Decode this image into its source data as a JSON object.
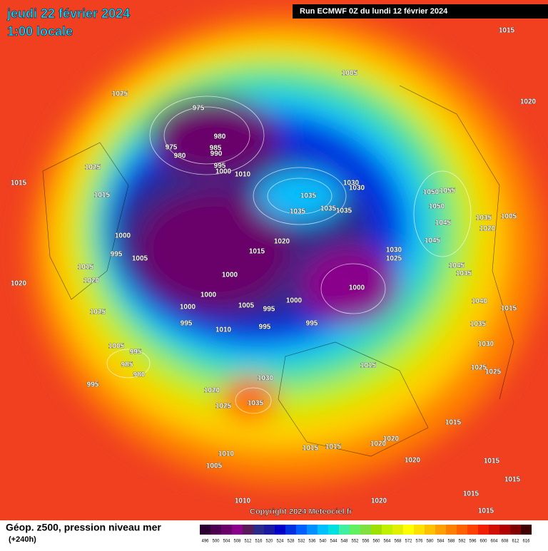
{
  "header": {
    "date": "jeudi 22 février 2024",
    "time": "1:00 locale",
    "run": "Run ECMWF 0Z du lundi 12 février 2024"
  },
  "footer": {
    "title": "Géop. z500, pression niveau mer",
    "subtitle": "(+240h)",
    "copyright": "Copyright 2024 Meteociel.fr"
  },
  "legend": {
    "values": [
      496,
      500,
      504,
      508,
      512,
      516,
      520,
      524,
      528,
      532,
      536,
      540,
      544,
      548,
      552,
      556,
      560,
      564,
      568,
      572,
      576,
      580,
      584,
      588,
      592,
      596,
      600,
      604,
      608,
      612,
      616
    ],
    "colors": [
      "#2a0030",
      "#4b0050",
      "#6a006a",
      "#8a008a",
      "#5a1a5a",
      "#2a2a8a",
      "#1a1aa0",
      "#0000c8",
      "#0030e0",
      "#0060ff",
      "#0090ff",
      "#00c0ff",
      "#00e0e0",
      "#40f0a0",
      "#60f060",
      "#80e040",
      "#a0e000",
      "#c0f000",
      "#e0f000",
      "#ffff00",
      "#ffe000",
      "#ffc000",
      "#ffa000",
      "#ff8000",
      "#ff6000",
      "#ff4000",
      "#f02000",
      "#d01000",
      "#b00000",
      "#800000",
      "#400000"
    ]
  },
  "isobar_labels": [
    1025,
    1005,
    1015,
    1020,
    975,
    980,
    975,
    980,
    985,
    990,
    995,
    1000,
    1010,
    1025,
    1015,
    1015,
    1000,
    995,
    1005,
    1015,
    1020,
    1020,
    1025,
    1035,
    1035,
    1035,
    1035,
    1030,
    1030,
    1020,
    1015,
    1030,
    1025,
    1000,
    1000,
    1000,
    1000,
    1005,
    995,
    1000,
    995,
    1010,
    995,
    995,
    1005,
    995,
    985,
    980,
    995,
    1030,
    1020,
    1035,
    1025,
    1015,
    1050,
    1055,
    1050,
    1045,
    1045,
    1045,
    1035,
    1035,
    1020,
    1005,
    1040,
    1015,
    1035,
    1030,
    1025,
    1025,
    1015,
    1020,
    1020,
    1015,
    1015,
    1020,
    1010,
    1005,
    1010,
    1020,
    1015,
    1015,
    1015,
    1015
  ]
}
